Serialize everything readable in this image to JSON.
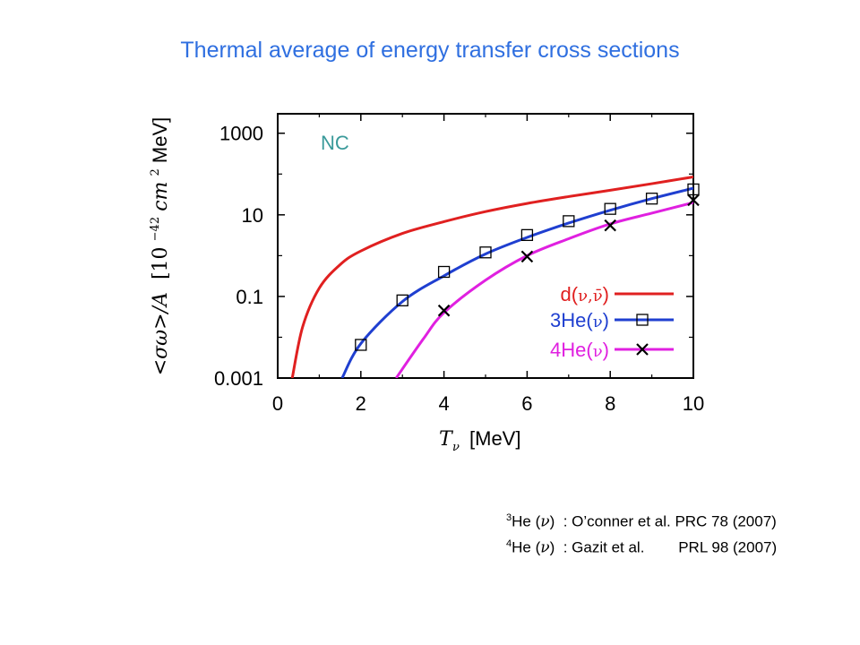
{
  "slide": {
    "title": "Thermal average of energy transfer cross sections"
  },
  "chart_data": {
    "type": "line",
    "log_y": true,
    "ylim": [
      0.001,
      3000
    ],
    "xlim": [
      0,
      10
    ],
    "x_ticks": [
      "0",
      "2",
      "4",
      "6",
      "8",
      "10"
    ],
    "y_ticks": [
      "1000",
      "10",
      "0.1",
      "0.001"
    ],
    "xlabel_sym": "T",
    "xlabel_sub": "ν",
    "xlabel_unit": "[MeV]",
    "ylabel_sym": "<σω>/A",
    "ylabel_unit_base": "[10",
    "ylabel_unit_exp": "−42",
    "ylabel_unit_mid": "cm",
    "ylabel_unit_exp2": "2",
    "ylabel_unit_end": " MeV]",
    "panel_label": "NC",
    "series": [
      {
        "name": "d(ν,ν̄)",
        "color": "#e02020",
        "x": [
          0.35,
          0.6,
          1.0,
          1.5,
          2.0,
          3.0,
          4.0,
          5.0,
          6.0,
          7.0,
          8.0,
          9.0,
          10.0
        ],
        "y": [
          0.001,
          0.018,
          0.16,
          0.6,
          1.3,
          3.5,
          6.8,
          12,
          19,
          28,
          40,
          58,
          85
        ]
      },
      {
        "name": "3He(ν)",
        "color": "#1f3fd0",
        "x": [
          1.55,
          2.0,
          3.0,
          4.0,
          5.0,
          6.0,
          7.0,
          8.0,
          9.0,
          10.0
        ],
        "y": [
          0.001,
          0.007,
          0.075,
          0.32,
          1.1,
          2.8,
          6.3,
          13,
          25,
          45
        ]
      },
      {
        "name": "4He(ν)",
        "color": "#e020e0",
        "x": [
          2.85,
          3.5,
          4.0,
          5.0,
          6.0,
          7.0,
          8.0,
          9.0,
          10.0
        ],
        "y": [
          0.001,
          0.009,
          0.04,
          0.25,
          1.0,
          2.6,
          6.0,
          11,
          20
        ]
      }
    ],
    "markers": [
      {
        "series": "3He(ν)",
        "symbol": "square",
        "x": [
          2,
          3,
          4,
          5,
          6,
          7,
          8,
          9,
          10
        ],
        "y": [
          0.0065,
          0.08,
          0.4,
          1.2,
          3.2,
          7.0,
          14.0,
          25,
          42
        ]
      },
      {
        "series": "4He(ν)",
        "symbol": "cross",
        "x": [
          4,
          6,
          8,
          10
        ],
        "y": [
          0.045,
          0.95,
          5.5,
          23
        ]
      }
    ],
    "legend": [
      {
        "label_main": "d(",
        "label_sym": "ν,ν̄",
        "label_tail": ")",
        "color": "#e02020",
        "symbol": "none"
      },
      {
        "label_main": "3He(",
        "label_sym": "ν",
        "label_tail": ")",
        "color": "#1f3fd0",
        "symbol": "square"
      },
      {
        "label_main": "4He(",
        "label_sym": "ν",
        "label_tail": ")",
        "color": "#e020e0",
        "symbol": "cross"
      }
    ],
    "legend_position": "bottom-right"
  },
  "references": [
    {
      "sup": "3",
      "nucleus": "He (",
      "nu": "ν",
      "close": ")",
      "text": ": O’conner et al. PRC 78 (2007)"
    },
    {
      "sup": "4",
      "nucleus": "He (",
      "nu": "ν",
      "close": ")",
      "text": ": Gazit et al.        PRL 98 (2007)"
    }
  ]
}
